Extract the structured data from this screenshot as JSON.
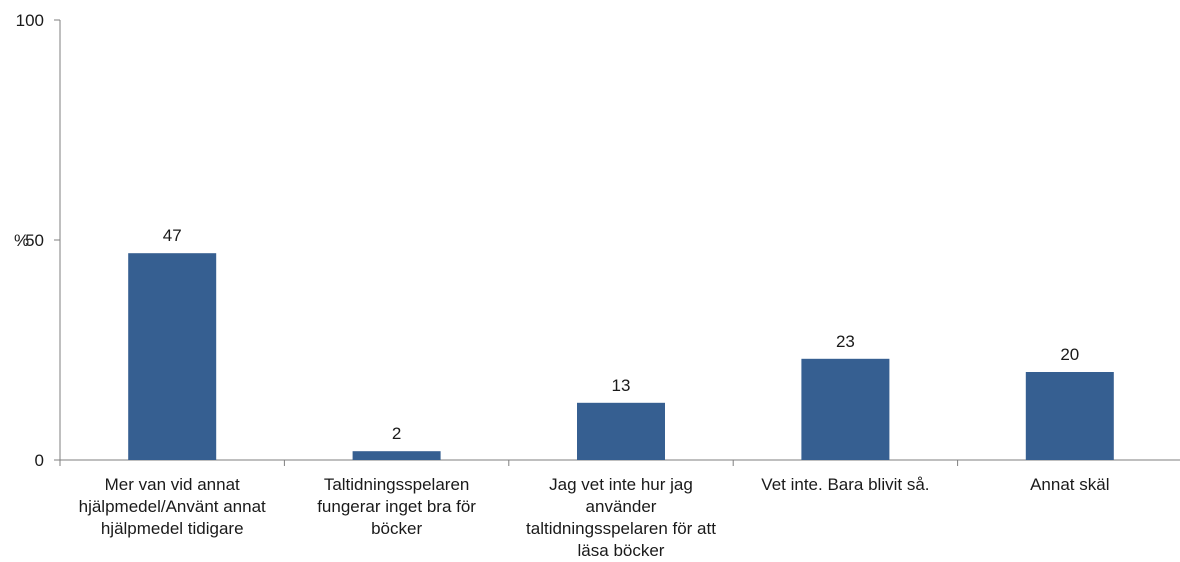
{
  "chart_data": {
    "type": "bar",
    "categories": [
      [
        "Mer van vid annat",
        "hjälpmedel/Använt annat",
        "hjälpmedel tidigare"
      ],
      [
        "Taltidningsspelaren",
        "fungerar inget bra för",
        "böcker"
      ],
      [
        "Jag vet inte hur jag",
        "använder",
        "taltidningsspelaren för att",
        "läsa böcker"
      ],
      [
        "Vet inte. Bara blivit så."
      ],
      [
        "Annat skäl"
      ]
    ],
    "values": [
      47,
      2,
      13,
      23,
      20
    ],
    "data_labels": [
      "47",
      "2",
      "13",
      "23",
      "20"
    ],
    "ylabel": "%",
    "ylim": [
      0,
      100
    ],
    "yticks": [
      {
        "value": 0,
        "label": "0"
      },
      {
        "value": 50,
        "label": "50"
      },
      {
        "value": 100,
        "label": "100"
      }
    ],
    "grid": false,
    "legend": "none",
    "colors": {
      "bar": "#365f91",
      "axis": "#7f7f7f",
      "text": "#1a1a1a"
    }
  }
}
